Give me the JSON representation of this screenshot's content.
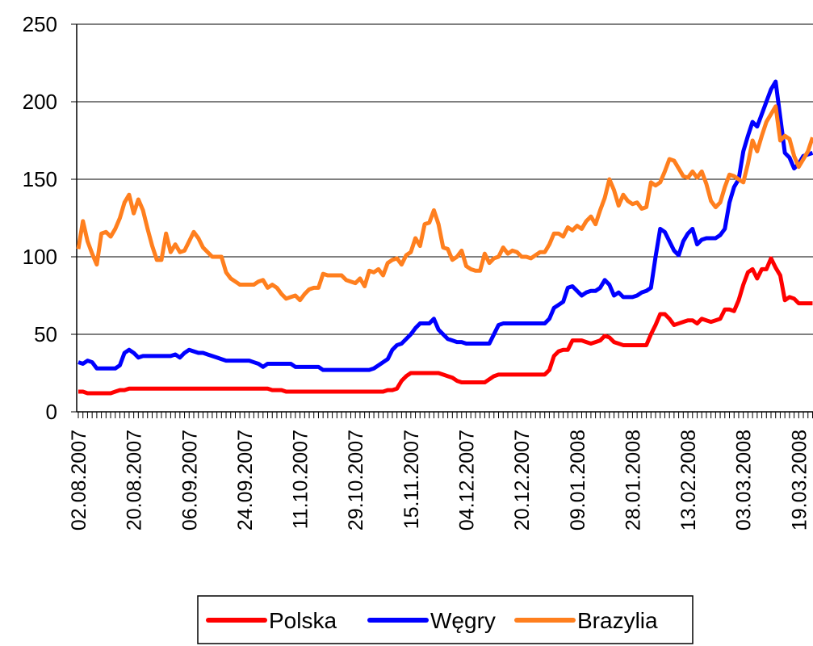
{
  "chart_data": {
    "type": "line",
    "categories": [
      "02.08.2007",
      null,
      null,
      null,
      null,
      null,
      null,
      null,
      null,
      null,
      null,
      null,
      "20.08.2007",
      null,
      null,
      null,
      null,
      null,
      null,
      null,
      null,
      null,
      null,
      null,
      "06.09.2007",
      null,
      null,
      null,
      null,
      null,
      null,
      null,
      null,
      null,
      null,
      null,
      "24.09.2007",
      null,
      null,
      null,
      null,
      null,
      null,
      null,
      null,
      null,
      null,
      null,
      "11.10.2007",
      null,
      null,
      null,
      null,
      null,
      null,
      null,
      null,
      null,
      null,
      null,
      "29.10.2007",
      null,
      null,
      null,
      null,
      null,
      null,
      null,
      null,
      null,
      null,
      null,
      "15.11.2007",
      null,
      null,
      null,
      null,
      null,
      null,
      null,
      null,
      null,
      null,
      null,
      "04.12.2007",
      null,
      null,
      null,
      null,
      null,
      null,
      null,
      null,
      null,
      null,
      null,
      "20.12.2007",
      null,
      null,
      null,
      null,
      null,
      null,
      null,
      null,
      null,
      null,
      null,
      "09.01.2008",
      null,
      null,
      null,
      null,
      null,
      null,
      null,
      null,
      null,
      null,
      null,
      "28.01.2008",
      null,
      null,
      null,
      null,
      null,
      null,
      null,
      null,
      null,
      null,
      null,
      "13.02.2008",
      null,
      null,
      null,
      null,
      null,
      null,
      null,
      null,
      null,
      null,
      null,
      "03.03.2008",
      null,
      null,
      null,
      null,
      null,
      null,
      null,
      null,
      null,
      null,
      null,
      "19.03.2008",
      null,
      null,
      null
    ],
    "series": [
      {
        "name": "Polska",
        "color": "#ff0000",
        "values": [
          13,
          13,
          12,
          12,
          12,
          12,
          12,
          12,
          13,
          14,
          14,
          15,
          15,
          15,
          15,
          15,
          15,
          15,
          15,
          15,
          15,
          15,
          15,
          15,
          15,
          15,
          15,
          15,
          15,
          15,
          15,
          15,
          15,
          15,
          15,
          15,
          15,
          15,
          15,
          15,
          15,
          15,
          14,
          14,
          14,
          13,
          13,
          13,
          13,
          13,
          13,
          13,
          13,
          13,
          13,
          13,
          13,
          13,
          13,
          13,
          13,
          13,
          13,
          13,
          13,
          13,
          13,
          14,
          14,
          15,
          20,
          23,
          25,
          25,
          25,
          25,
          25,
          25,
          25,
          24,
          23,
          22,
          20,
          19,
          19,
          19,
          19,
          19,
          19,
          21,
          23,
          24,
          24,
          24,
          24,
          24,
          24,
          24,
          24,
          24,
          24,
          24,
          27,
          36,
          39,
          40,
          40,
          46,
          46,
          46,
          45,
          44,
          45,
          46,
          49,
          48,
          45,
          44,
          43,
          43,
          43,
          43,
          43,
          43,
          50,
          56,
          63,
          63,
          60,
          56,
          57,
          58,
          59,
          59,
          57,
          60,
          59,
          58,
          59,
          60,
          66,
          66,
          65,
          72,
          82,
          90,
          92,
          86,
          92,
          92,
          99,
          93,
          88,
          72,
          74,
          73,
          70,
          70,
          70,
          70
        ]
      },
      {
        "name": "Węgry",
        "color": "#0000ff",
        "values": [
          32,
          31,
          33,
          32,
          28,
          28,
          28,
          28,
          28,
          30,
          38,
          40,
          38,
          35,
          36,
          36,
          36,
          36,
          36,
          36,
          36,
          37,
          35,
          38,
          40,
          39,
          38,
          38,
          37,
          36,
          35,
          34,
          33,
          33,
          33,
          33,
          33,
          33,
          32,
          31,
          29,
          31,
          31,
          31,
          31,
          31,
          31,
          29,
          29,
          29,
          29,
          29,
          29,
          27,
          27,
          27,
          27,
          27,
          27,
          27,
          27,
          27,
          27,
          27,
          28,
          30,
          32,
          34,
          40,
          43,
          44,
          47,
          50,
          54,
          57,
          57,
          57,
          60,
          53,
          50,
          47,
          46,
          45,
          45,
          44,
          44,
          44,
          44,
          44,
          44,
          50,
          56,
          57,
          57,
          57,
          57,
          57,
          57,
          57,
          57,
          57,
          57,
          60,
          67,
          69,
          71,
          80,
          81,
          78,
          75,
          77,
          78,
          78,
          80,
          85,
          82,
          75,
          77,
          74,
          74,
          74,
          75,
          77,
          78,
          80,
          100,
          118,
          116,
          110,
          104,
          101,
          110,
          115,
          118,
          108,
          111,
          112,
          112,
          112,
          114,
          118,
          135,
          145,
          150,
          168,
          178,
          187,
          184,
          192,
          200,
          208,
          213,
          190,
          167,
          164,
          157,
          160,
          165,
          166,
          167
        ]
      },
      {
        "name": "Brazylia",
        "color": "#ff7f1e",
        "values": [
          105,
          123,
          110,
          102,
          95,
          115,
          116,
          113,
          118,
          125,
          135,
          140,
          128,
          137,
          130,
          118,
          107,
          98,
          98,
          115,
          103,
          108,
          103,
          104,
          110,
          116,
          112,
          106,
          103,
          100,
          100,
          100,
          90,
          86,
          84,
          82,
          82,
          82,
          82,
          84,
          85,
          80,
          82,
          80,
          76,
          73,
          74,
          75,
          72,
          76,
          79,
          80,
          80,
          89,
          88,
          88,
          88,
          88,
          85,
          84,
          83,
          86,
          81,
          91,
          90,
          92,
          88,
          96,
          98,
          99,
          95,
          101,
          103,
          112,
          107,
          121,
          122,
          130,
          121,
          106,
          105,
          98,
          100,
          104,
          94,
          92,
          91,
          91,
          102,
          96,
          99,
          100,
          106,
          102,
          104,
          103,
          100,
          100,
          99,
          101,
          103,
          103,
          108,
          115,
          115,
          113,
          119,
          117,
          120,
          118,
          123,
          126,
          121,
          130,
          138,
          150,
          143,
          133,
          140,
          136,
          134,
          135,
          131,
          132,
          148,
          146,
          148,
          155,
          163,
          162,
          157,
          152,
          151,
          155,
          151,
          155,
          147,
          136,
          132,
          135,
          145,
          153,
          152,
          150,
          148,
          160,
          175,
          168,
          178,
          187,
          192,
          197,
          175,
          178,
          176,
          165,
          158,
          163,
          168,
          177
        ]
      }
    ],
    "ylim": [
      0,
      250
    ],
    "yticks": [
      0,
      50,
      100,
      150,
      200,
      250
    ],
    "grid": true,
    "legend": "bottom"
  }
}
